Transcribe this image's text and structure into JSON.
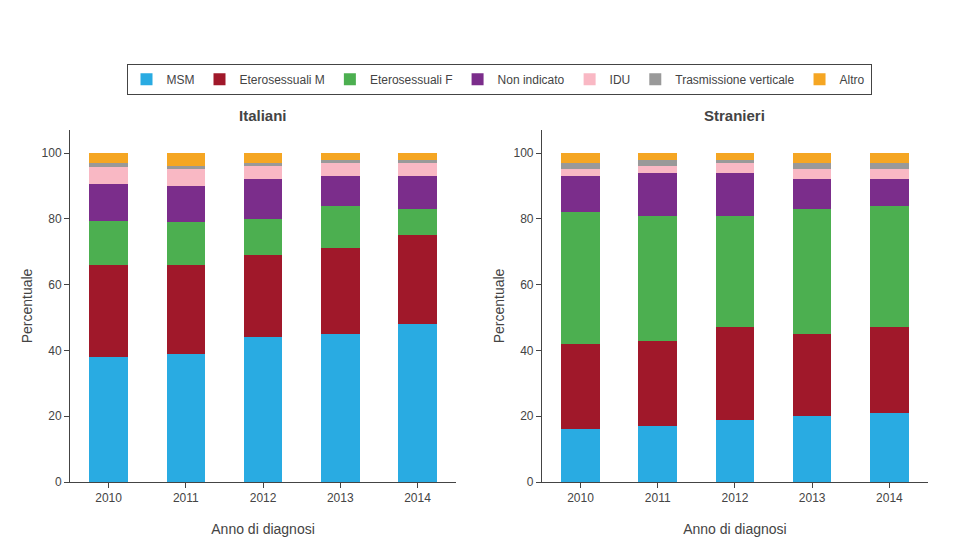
{
  "chart_data": [
    {
      "type": "bar",
      "stacked": true,
      "title": "Italiani",
      "x_label": "Anno di diagnosi",
      "y_label": "Percentuale",
      "categories": [
        "2010",
        "2011",
        "2012",
        "2013",
        "2014"
      ],
      "series": [
        {
          "name": "MSM",
          "color": "#29ABE2",
          "values": [
            38.14433,
            39,
            44,
            45,
            48
          ]
        },
        {
          "name": "Eterosessuali M",
          "color": "#A0182A",
          "values": [
            27.83505,
            27,
            25,
            26,
            27
          ]
        },
        {
          "name": "Eterosessuali F",
          "color": "#4CAF50",
          "values": [
            13.40206,
            13,
            11,
            13,
            8
          ]
        },
        {
          "name": "Non indicato",
          "color": "#7B2D8B",
          "values": [
            11.34021,
            11,
            12,
            9,
            10
          ]
        },
        {
          "name": "IDU",
          "color": "#F9B8C4",
          "values": [
            5.154639,
            5,
            4,
            4,
            4
          ]
        },
        {
          "name": "Trasmissione verticale",
          "color": "#999999",
          "values": [
            1.030928,
            1,
            1,
            1,
            1
          ]
        },
        {
          "name": "Altro",
          "color": "#F5A623",
          "values": [
            3.092784,
            4,
            3,
            2,
            2
          ]
        }
      ],
      "ylim": [
        0,
        107
      ],
      "yticks": [
        0,
        20,
        40,
        60,
        80,
        100
      ],
      "grid": false,
      "legend": "top"
    },
    {
      "type": "bar",
      "stacked": true,
      "title": "Stranieri",
      "x_label": "Anno di diagnosi",
      "y_label": "Percentuale",
      "categories": [
        "2010",
        "2011",
        "2012",
        "2013",
        "2014"
      ],
      "series": [
        {
          "name": "MSM",
          "color": "#29ABE2",
          "values": [
            16,
            17,
            19,
            20,
            21
          ]
        },
        {
          "name": "Eterosessuali M",
          "color": "#A0182A",
          "values": [
            26,
            26,
            28,
            25,
            26
          ]
        },
        {
          "name": "Eterosessuali F",
          "color": "#4CAF50",
          "values": [
            40,
            38,
            34,
            38,
            37
          ]
        },
        {
          "name": "Non indicato",
          "color": "#7B2D8B",
          "values": [
            11,
            13,
            13,
            9,
            8
          ]
        },
        {
          "name": "IDU",
          "color": "#F9B8C4",
          "values": [
            2,
            2,
            3,
            3,
            3
          ]
        },
        {
          "name": "Trasmissione verticale",
          "color": "#999999",
          "values": [
            2,
            2,
            1,
            2,
            2
          ]
        },
        {
          "name": "Altro",
          "color": "#F5A623",
          "values": [
            3,
            2,
            2,
            3,
            3
          ]
        }
      ],
      "ylim": [
        0,
        107
      ],
      "yticks": [
        0,
        20,
        40,
        60,
        80,
        100
      ],
      "grid": false
    }
  ]
}
